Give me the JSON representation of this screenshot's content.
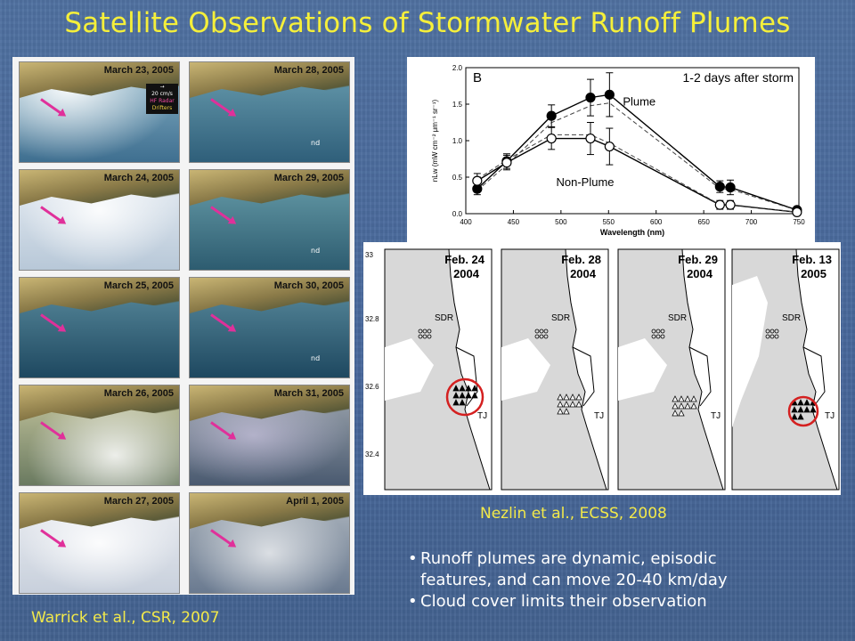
{
  "title": "Satellite Observations of Stormwater Runoff Plumes",
  "left_caption": "Warrick et al., CSR, 2007",
  "right_caption": "Nezlin et al., ECSS, 2008",
  "satellite_panels": [
    {
      "date": "March 23, 2005"
    },
    {
      "date": "March 28, 2005"
    },
    {
      "date": "March 24, 2005"
    },
    {
      "date": "March 29, 2005"
    },
    {
      "date": "March 25, 2005"
    },
    {
      "date": "March 30, 2005"
    },
    {
      "date": "March 26, 2005"
    },
    {
      "date": "March 31, 2005"
    },
    {
      "date": "March 27, 2005"
    },
    {
      "date": "April 1, 2005"
    }
  ],
  "sat_legend": {
    "speed": "20 cm/s",
    "radar": "HF Radar",
    "drifters": "Drifters"
  },
  "nd_label": "nd",
  "chart_data": {
    "type": "line",
    "panel_letter": "B",
    "title": "1-2 days after storm",
    "xlabel": "Wavelength (nm)",
    "ylabel": "nLw (mW cm⁻² μm⁻¹ sr⁻¹)",
    "xlim": [
      400,
      750
    ],
    "ylim": [
      0.0,
      2.0
    ],
    "xticks": [
      400,
      450,
      500,
      550,
      600,
      650,
      700,
      750
    ],
    "yticks": [
      0.0,
      0.5,
      1.0,
      1.5,
      2.0
    ],
    "series": [
      {
        "name": "Plume",
        "x": [
          412,
          443,
          490,
          531,
          551,
          667,
          678,
          748
        ],
        "y": [
          0.34,
          0.72,
          1.34,
          1.59,
          1.63,
          0.37,
          0.36,
          0.05
        ],
        "err": [
          0.08,
          0.1,
          0.15,
          0.25,
          0.3,
          0.08,
          0.1,
          0.03
        ],
        "marker": "filled"
      },
      {
        "name": "Non-Plume",
        "x": [
          412,
          443,
          490,
          531,
          551,
          667,
          678,
          748
        ],
        "y": [
          0.45,
          0.7,
          1.03,
          1.03,
          0.92,
          0.12,
          0.12,
          0.02
        ],
        "err": [
          0.1,
          0.1,
          0.15,
          0.22,
          0.25,
          0.06,
          0.06,
          0.02
        ],
        "marker": "open"
      }
    ]
  },
  "map_panels": [
    {
      "date": "Feb. 24",
      "year": "2004"
    },
    {
      "date": "Feb. 28",
      "year": "2004"
    },
    {
      "date": "Feb. 29",
      "year": "2004"
    },
    {
      "date": "Feb. 13",
      "year": "2005"
    }
  ],
  "map_labels": {
    "sdr": "SDR",
    "tj": "TJ"
  },
  "map_yticks": [
    "33",
    "32.8",
    "32.6",
    "32.4"
  ],
  "bullets": [
    {
      "line1": "Runoff plumes are dynamic, episodic",
      "line2": "features, and can move 20-40 km/day"
    },
    {
      "line1": "Cloud cover limits their observation",
      "line2": ""
    }
  ],
  "colors": {
    "title": "#f5ef3a",
    "caption": "#f2e94a",
    "background": "#4a6a96",
    "highlight_circle": "#d42020"
  }
}
